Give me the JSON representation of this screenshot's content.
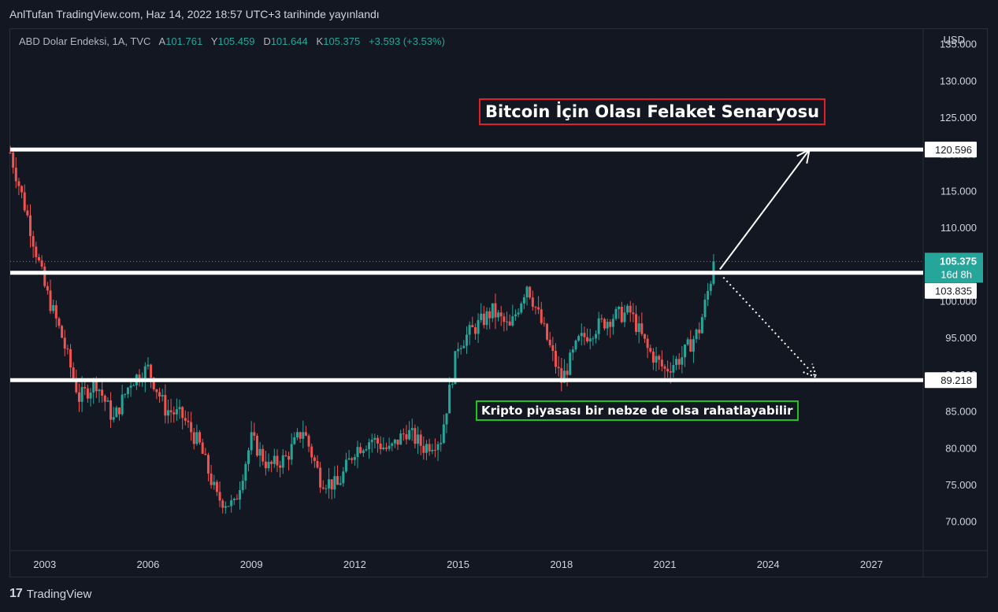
{
  "header": {
    "published_text": "AnlTufan TradingView.com, Haz 14, 2022 18:57 UTC+3 tarihinde yayınlandı"
  },
  "legend": {
    "symbol": "ABD Dolar Endeksi, 1A, TVC",
    "open_label": "A",
    "open_value": "101.761",
    "high_label": "Y",
    "high_value": "105.459",
    "low_label": "D",
    "low_value": "101.644",
    "close_label": "K",
    "close_value": "105.375",
    "change": "+3.593 (+3.53%)"
  },
  "currency": "USD",
  "annotations": {
    "title": "Bitcoin İçin Olası Felaket Senaryosu",
    "note": "Kripto piyasası bir nebze de olsa rahatlayabilir"
  },
  "footer": {
    "brand": "TradingView",
    "logo_glyph": "17"
  },
  "colors": {
    "background": "#131722",
    "up": "#26a69a",
    "down": "#ef5350",
    "title_border": "#e51e25",
    "note_border": "#21c321",
    "level_line": "#ffffff"
  },
  "chart_data": {
    "type": "candlestick",
    "interval": "1A",
    "ylim": [
      66,
      137
    ],
    "xlim": [
      2002.0,
      2028.5
    ],
    "y_ticks": [
      "70.000",
      "75.000",
      "80.000",
      "85.000",
      "90.000",
      "95.000",
      "100.000",
      "105.000",
      "110.000",
      "115.000",
      "120.000",
      "125.000",
      "130.000",
      "135.000"
    ],
    "x_ticks": [
      "2003",
      "2006",
      "2009",
      "2012",
      "2015",
      "2018",
      "2021",
      "2024",
      "2027"
    ],
    "horizontal_levels": [
      {
        "label": "120.596",
        "value": 120.596
      },
      {
        "label": "103.835",
        "value": 103.835
      },
      {
        "label": "89.218",
        "value": 89.218
      }
    ],
    "last_price": {
      "value": 105.375,
      "label": "105.375",
      "countdown": "16d 8h"
    },
    "projection_up": {
      "from": [
        2022.6,
        104.3
      ],
      "to": [
        2025.2,
        120.6
      ]
    },
    "projection_down": {
      "from": [
        2022.7,
        103.2
      ],
      "to": [
        2025.4,
        89.6
      ]
    },
    "closes": [
      [
        2002.0,
        120.2
      ],
      [
        2002.5,
        111.5
      ],
      [
        2003.0,
        101.9
      ],
      [
        2003.5,
        95.1
      ],
      [
        2004.0,
        86.8
      ],
      [
        2004.5,
        88.9
      ],
      [
        2005.0,
        83.8
      ],
      [
        2005.5,
        89.1
      ],
      [
        2006.0,
        90.8
      ],
      [
        2006.5,
        85.3
      ],
      [
        2007.0,
        84.2
      ],
      [
        2007.5,
        80.3
      ],
      [
        2008.0,
        73.2
      ],
      [
        2008.5,
        72.1
      ],
      [
        2009.0,
        81.2
      ],
      [
        2009.5,
        77.4
      ],
      [
        2010.0,
        78.6
      ],
      [
        2010.5,
        82.5
      ],
      [
        2011.0,
        75.8
      ],
      [
        2011.5,
        74.8
      ],
      [
        2012.0,
        79.8
      ],
      [
        2012.5,
        81.2
      ],
      [
        2013.0,
        79.6
      ],
      [
        2013.5,
        82.3
      ],
      [
        2014.0,
        80.1
      ],
      [
        2014.5,
        81.3
      ],
      [
        2015.0,
        94.1
      ],
      [
        2015.5,
        96.4
      ],
      [
        2016.0,
        98.6
      ],
      [
        2016.5,
        96.2
      ],
      [
        2017.0,
        102.3
      ],
      [
        2017.5,
        95.9
      ],
      [
        2018.0,
        89.1
      ],
      [
        2018.5,
        94.5
      ],
      [
        2019.0,
        96.4
      ],
      [
        2019.5,
        97.9
      ],
      [
        2020.0,
        98.4
      ],
      [
        2020.5,
        93.4
      ],
      [
        2021.0,
        90.6
      ],
      [
        2021.5,
        92.4
      ],
      [
        2022.0,
        96.1
      ],
      [
        2022.45,
        105.375
      ]
    ]
  }
}
